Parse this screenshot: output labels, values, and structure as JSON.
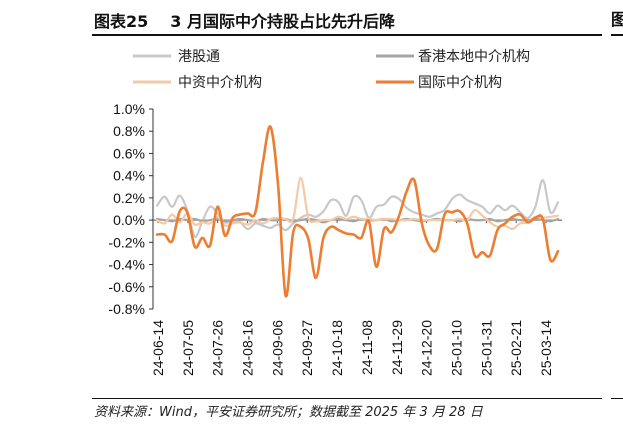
{
  "header": {
    "figure_label": "图表25",
    "title": "3 月国际中介持股占比先升后降",
    "right_stub": "图"
  },
  "source_note": "资料来源：Wind，平安证券研究所；数据截至 2025 年 3 月 28 日",
  "colors": {
    "hk_connect": "#c8c8c8",
    "hk_local": "#a6a6a6",
    "china_intermediary": "#f6c8a4",
    "intl_intermediary": "#ed7d31"
  },
  "chart_data": {
    "type": "line",
    "title": "3 月国际中介持股占比先升后降",
    "xlabel": "",
    "ylabel": "",
    "ylim": [
      -0.008,
      0.01
    ],
    "yticks": [
      -0.008,
      -0.006,
      -0.004,
      -0.002,
      0.0,
      0.002,
      0.004,
      0.006,
      0.008,
      0.01
    ],
    "ytick_labels": [
      "-0.8%",
      "-0.6%",
      "-0.4%",
      "-0.2%",
      "0.0%",
      "0.2%",
      "0.4%",
      "0.6%",
      "0.8%",
      "1.0%"
    ],
    "xtick_labels": [
      "24-06-14",
      "24-07-05",
      "24-07-26",
      "24-08-16",
      "24-09-06",
      "24-09-27",
      "24-10-18",
      "24-11-08",
      "24-11-29",
      "24-12-20",
      "25-01-10",
      "25-01-31",
      "25-02-21",
      "25-03-14"
    ],
    "legend_position": "top",
    "series": [
      {
        "name": "港股通",
        "color_key": "hk_connect",
        "values": [
          0.0013,
          0.0021,
          0.0012,
          0.0022,
          0.0009,
          -0.0015,
          -0.0001,
          0.0012,
          0.0006,
          -0.0002,
          -0.0001,
          -0.0002,
          -0.0008,
          -0.0003,
          -0.0005,
          -0.0007,
          -0.0004,
          -0.0009,
          -0.0003,
          0.0002,
          0.0005,
          0.0003,
          0.0008,
          0.0018,
          0.0016,
          0.0004,
          0.0021,
          0.0018,
          0.0002,
          0.0012,
          0.0014,
          0.0021,
          0.0019,
          0.0011,
          0.0007,
          0.0005,
          0.0003,
          0.0006,
          0.0009,
          0.0019,
          0.0023,
          0.0018,
          0.0015,
          0.0012,
          0.0006,
          0.0013,
          0.0009,
          0.0013,
          0.0007,
          0.0002,
          0.0012,
          0.0036,
          0.0007,
          0.0016
        ]
      },
      {
        "name": "香港本地中介机构",
        "color_key": "hk_local",
        "values": [
          0.0001,
          0.0,
          -0.0001,
          0.0001,
          0.0,
          0.0001,
          -0.0001,
          0.0,
          0.0001,
          -0.0001,
          0.0,
          0.0001,
          0.0,
          -0.0001,
          0.0001,
          0.0,
          0.0,
          0.0001,
          -0.0001,
          0.0,
          0.0001,
          0.0,
          -0.0002,
          0.0,
          0.0001,
          0.0,
          -0.0001,
          0.0001,
          0.0,
          0.0,
          0.0001,
          -0.0001,
          0.0,
          0.0001,
          0.0,
          -0.0001,
          0.0,
          0.0001,
          0.0,
          0.0,
          -0.0001,
          0.0001,
          0.0,
          0.0,
          0.0001,
          -0.0001,
          0.0,
          0.0001,
          0.0,
          0.0,
          0.0001,
          0.0,
          -0.0001,
          0.0001
        ]
      },
      {
        "name": "中资中介机构",
        "color_key": "china_intermediary",
        "values": [
          0.0,
          -0.0003,
          0.0005,
          -0.0002,
          0.0006,
          -0.0004,
          -0.0002,
          -0.0003,
          0.0003,
          -0.0005,
          -0.0003,
          -0.0002,
          -0.0004,
          0.0,
          -0.0003,
          0.0001,
          0.0002,
          0.0001,
          0.0001,
          0.0038,
          0.0002,
          -0.0001,
          0.0,
          0.0,
          0.0003,
          0.0001,
          0.0003,
          0.0001,
          0.0001,
          0.0,
          0.0001,
          0.0001,
          0.0,
          0.0,
          0.0001,
          0.0,
          0.0,
          0.0,
          0.0,
          0.0,
          0.0001,
          0.0,
          0.0009,
          0.0004,
          -0.0002,
          -0.0006,
          -0.0005,
          -0.0008,
          -0.0003,
          -0.0002,
          0.0003,
          0.0002,
          0.0003,
          0.0004
        ]
      },
      {
        "name": "国际中介机构",
        "color_key": "intl_intermediary",
        "values": [
          -0.0013,
          -0.0013,
          -0.0019,
          0.0008,
          0.0007,
          -0.0024,
          -0.0016,
          -0.0023,
          0.0012,
          -0.0014,
          0.0002,
          0.0005,
          0.0006,
          0.0007,
          0.0052,
          0.0084,
          0.0032,
          -0.0068,
          -0.0011,
          -0.0006,
          -0.0017,
          -0.0052,
          -0.0016,
          -0.0006,
          -0.0009,
          -0.0012,
          -0.0013,
          -0.0016,
          -0.0001,
          -0.0042,
          -0.0008,
          -0.0011,
          0.0004,
          0.0026,
          0.0036,
          -0.0003,
          -0.0023,
          -0.0026,
          0.0005,
          0.0007,
          0.0008,
          -0.0003,
          -0.0032,
          -0.0029,
          -0.0032,
          -0.0009,
          -0.0003,
          0.0003,
          0.0005,
          -0.0002,
          0.0002,
          0.0001,
          -0.0036,
          -0.0028
        ]
      }
    ]
  }
}
